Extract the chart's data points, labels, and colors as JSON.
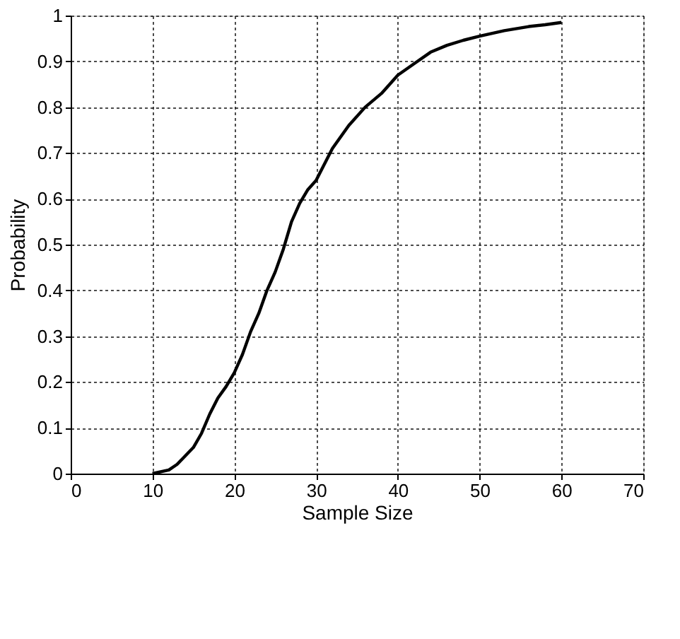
{
  "chart_data": {
    "type": "line",
    "xlabel": "Sample Size",
    "ylabel": "Probability",
    "x": [
      10,
      12,
      13,
      15,
      16,
      17,
      18,
      19,
      20,
      21,
      22,
      23,
      24,
      25,
      26,
      27,
      28,
      29,
      30,
      32,
      34,
      36,
      38,
      40,
      42,
      44,
      46,
      48,
      50,
      53,
      56,
      58,
      60
    ],
    "series": [
      {
        "color": "#000000",
        "values": [
          0,
          0.008,
          0.02,
          0.057,
          0.088,
          0.13,
          0.165,
          0.19,
          0.22,
          0.26,
          0.31,
          0.35,
          0.4,
          0.44,
          0.49,
          0.55,
          0.59,
          0.62,
          0.64,
          0.71,
          0.76,
          0.8,
          0.83,
          0.87,
          0.895,
          0.92,
          0.935,
          0.946,
          0.955,
          0.967,
          0.976,
          0.98,
          0.985
        ]
      }
    ],
    "xlim": [
      0,
      70
    ],
    "xticks": [
      0,
      10,
      20,
      30,
      40,
      50,
      60,
      70
    ],
    "ylim": [
      0,
      1
    ],
    "yticks": [
      0,
      0.1,
      0.2,
      0.3,
      0.4,
      0.5,
      0.6,
      0.7,
      0.8,
      0.9,
      1
    ],
    "grid": true,
    "line_style": "solid",
    "marker": "none"
  }
}
